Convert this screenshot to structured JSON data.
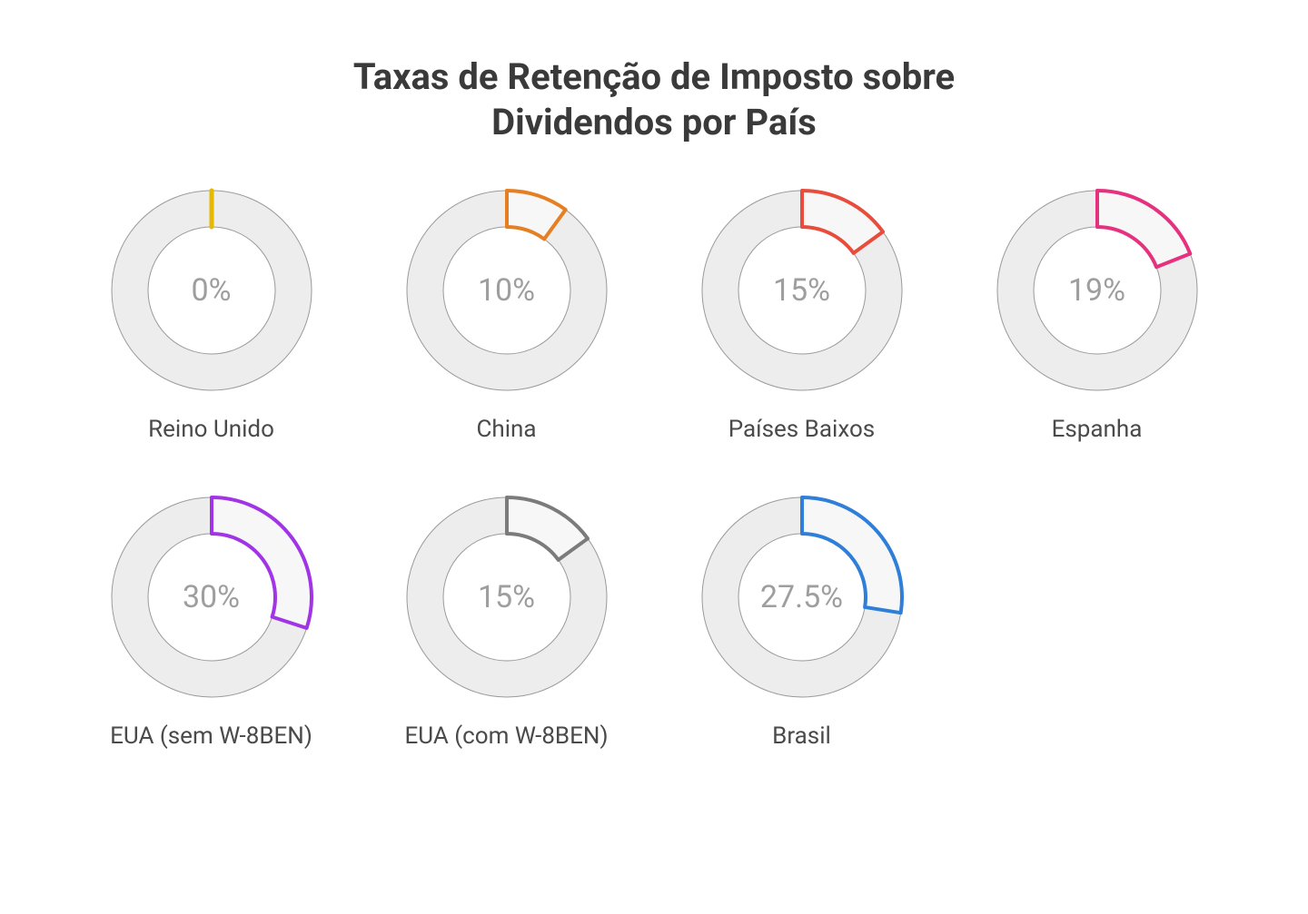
{
  "title_line1": "Taxas de Retenção de Imposto sobre",
  "title_line2": "Dividendos por País",
  "title_fontsize": 40,
  "title_color": "#3a3a3a",
  "background_color": "#ffffff",
  "grid_columns": 4,
  "donut": {
    "outer_radius": 110,
    "inner_radius": 70,
    "track_color": "#ededed",
    "separator_color": "#9a9a9a",
    "separator_width": 2,
    "center_label_fontsize": 34,
    "center_label_color": "#9e9e9e",
    "country_label_fontsize": 26,
    "country_label_color": "#4a4a4a"
  },
  "items": [
    {
      "label": "Reino Unido",
      "value": 0,
      "display": "0%",
      "color": "#e6b800"
    },
    {
      "label": "China",
      "value": 10,
      "display": "10%",
      "color": "#e67e22"
    },
    {
      "label": "Países Baixos",
      "value": 15,
      "display": "15%",
      "color": "#e74c3c"
    },
    {
      "label": "Espanha",
      "value": 19,
      "display": "19%",
      "color": "#e6317f"
    },
    {
      "label": "EUA (sem W-8BEN)",
      "value": 30,
      "display": "30%",
      "color": "#a135e6"
    },
    {
      "label": "EUA (com W-8BEN)",
      "value": 15,
      "display": "15%",
      "color": "#7b7b7b"
    },
    {
      "label": "Brasil",
      "value": 27.5,
      "display": "27.5%",
      "color": "#2f7ed8"
    }
  ]
}
